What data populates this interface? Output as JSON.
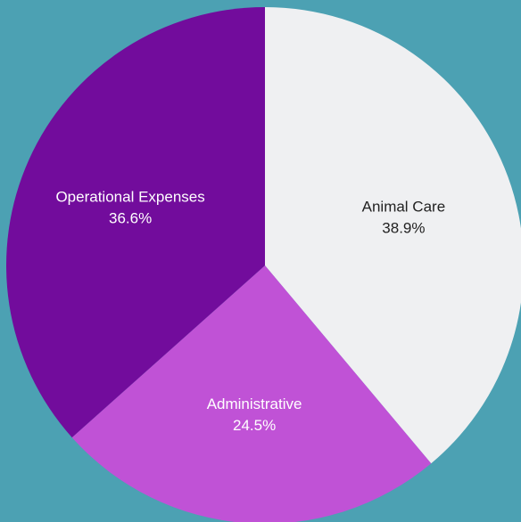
{
  "colors": {
    "background": "#4ca1b3"
  },
  "chart_data": {
    "type": "pie",
    "title": "",
    "start_angle_deg": 0,
    "direction": "clockwise",
    "slices": [
      {
        "label": "Animal Care",
        "value": 38.9,
        "value_label": "38.9%",
        "color": "#eff0f2",
        "text_color": "#222222"
      },
      {
        "label": "Administrative",
        "value": 24.5,
        "value_label": "24.5%",
        "color": "#c052d6",
        "text_color": "#ffffff"
      },
      {
        "label": "Operational Expenses",
        "value": 36.6,
        "value_label": "36.6%",
        "color": "#720c9c",
        "text_color": "#ffffff"
      }
    ]
  }
}
